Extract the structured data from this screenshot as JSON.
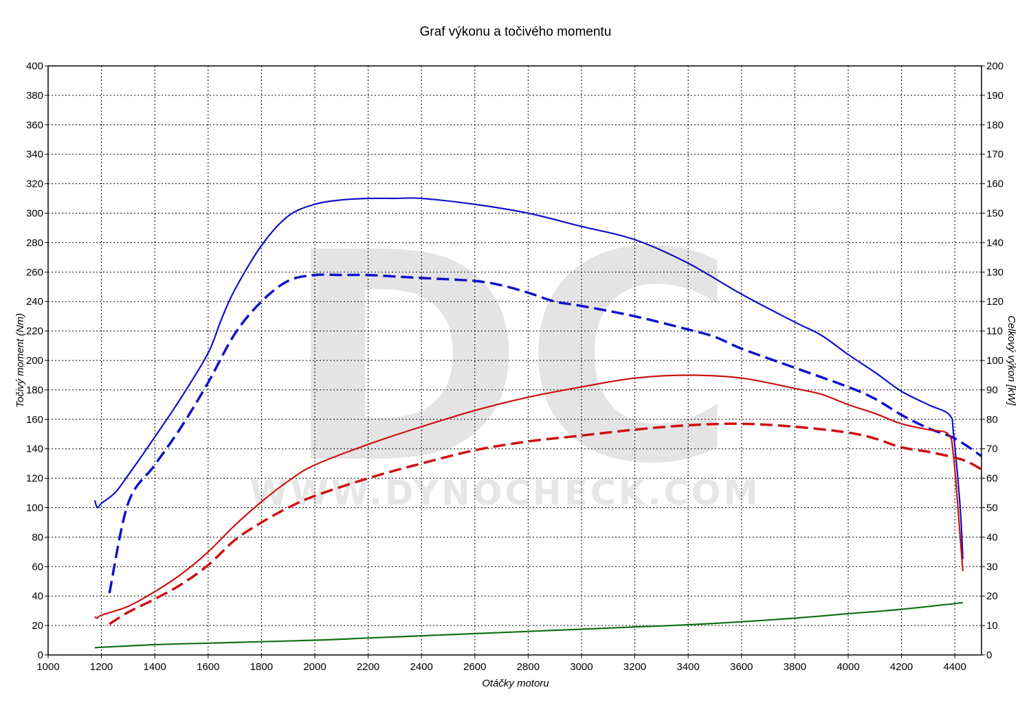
{
  "chart_data": {
    "type": "line",
    "title": "Graf výkonu a točivého momentu",
    "xlabel": "Otáčky motoru",
    "ylabel_left": "Točivý moment (Nm)",
    "ylabel_right": "Celkový výkon [kW]",
    "xlim": [
      1000,
      4500
    ],
    "ylim_left": [
      0,
      400
    ],
    "ylim_right": [
      0,
      200
    ],
    "x_ticks": [
      1000,
      1200,
      1400,
      1600,
      1800,
      2000,
      2200,
      2400,
      2600,
      2800,
      3000,
      3200,
      3400,
      3600,
      3800,
      4000,
      4200,
      4400
    ],
    "y_ticks_left": [
      0,
      20,
      40,
      60,
      80,
      100,
      120,
      140,
      160,
      180,
      200,
      220,
      240,
      260,
      280,
      300,
      320,
      340,
      360,
      380,
      400
    ],
    "y_ticks_right": [
      0,
      10,
      20,
      30,
      40,
      50,
      60,
      70,
      80,
      90,
      100,
      110,
      120,
      130,
      140,
      150,
      160,
      170,
      180,
      190,
      200
    ],
    "grid": true,
    "watermark": {
      "logo": "DC",
      "text": "WWW.DYNOCHECK.COM"
    },
    "series": [
      {
        "axis": "left",
        "color": "#1010c8",
        "dash": "solid",
        "x": [
          1175,
          1185,
          1200,
          1250,
          1300,
          1400,
          1500,
          1600,
          1650,
          1700,
          1800,
          1900,
          2000,
          2100,
          2200,
          2300,
          2400,
          2600,
          2800,
          3000,
          3200,
          3400,
          3600,
          3800,
          3900,
          4000,
          4100,
          4200,
          4300,
          4380,
          4395,
          4420,
          4430
        ],
        "y": [
          105,
          100,
          103,
          110,
          122,
          148,
          175,
          205,
          228,
          248,
          278,
          298,
          306,
          309,
          310,
          310,
          310,
          306,
          300,
          291,
          282,
          266,
          245,
          226,
          217,
          204,
          192,
          179,
          170,
          163,
          150,
          100,
          65
        ]
      },
      {
        "axis": "left",
        "color": "#1010c8",
        "dash": "dashed",
        "x": [
          1230,
          1300,
          1400,
          1500,
          1600,
          1700,
          1800,
          1900,
          2000,
          2100,
          2200,
          2300,
          2400,
          2600,
          2700,
          2800,
          2900,
          3000,
          3200,
          3400,
          3500,
          3600,
          3800,
          4000,
          4100,
          4200,
          4300,
          4400,
          4500
        ],
        "y": [
          42,
          103,
          129,
          155,
          185,
          218,
          240,
          254,
          258,
          258,
          258,
          257,
          256,
          254,
          251,
          246,
          240,
          237,
          230,
          221,
          216,
          208,
          195,
          182,
          174,
          163,
          154,
          147,
          135
        ]
      },
      {
        "axis": "left",
        "color": "#cc1010",
        "dash": "solid",
        "x": [
          1175,
          1185,
          1200,
          1300,
          1400,
          1500,
          1600,
          1700,
          1800,
          1900,
          2000,
          2200,
          2400,
          2600,
          2800,
          3000,
          3200,
          3400,
          3600,
          3800,
          3900,
          4000,
          4100,
          4200,
          4300,
          4375,
          4395,
          4420,
          4430
        ],
        "y": [
          26,
          25,
          27,
          33,
          43,
          55,
          70,
          88,
          104,
          118,
          129,
          143,
          155,
          166,
          175,
          182,
          188,
          190,
          188,
          181,
          177,
          170,
          164,
          157,
          153,
          150,
          135,
          80,
          57
        ]
      },
      {
        "axis": "left",
        "color": "#cc1010",
        "dash": "dashed",
        "x": [
          1230,
          1300,
          1400,
          1500,
          1600,
          1700,
          1800,
          1900,
          2000,
          2200,
          2400,
          2600,
          2800,
          3000,
          3200,
          3400,
          3600,
          3800,
          4000,
          4100,
          4200,
          4300,
          4400,
          4450,
          4500
        ],
        "y": [
          21,
          29,
          38,
          48,
          61,
          78,
          90,
          100,
          108,
          120,
          130,
          139,
          145,
          149,
          153,
          156,
          157,
          155,
          151,
          147,
          141,
          138,
          134,
          131,
          126
        ]
      },
      {
        "axis": "left",
        "color": "#107010",
        "dash": "solid",
        "x": [
          1175,
          1400,
          1600,
          1800,
          2000,
          2200,
          2400,
          2600,
          2800,
          3000,
          3200,
          3400,
          3600,
          3800,
          4000,
          4200,
          4430
        ],
        "y": [
          5,
          7,
          8,
          9,
          10,
          11.5,
          13,
          14.5,
          16,
          17.5,
          19,
          20.5,
          22.5,
          25,
          28,
          31,
          35.5
        ]
      }
    ]
  }
}
